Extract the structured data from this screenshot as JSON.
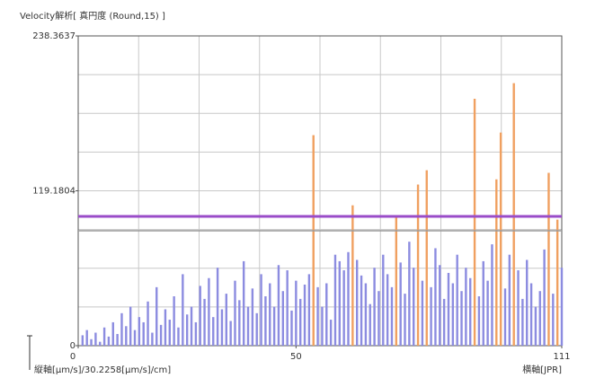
{
  "chart_data": {
    "type": "bar",
    "title": "Velocity解析[ 真円度 (Round,15) ]",
    "x_label": "縦軸[μm/s]/30.2258[μm/s]/cm]",
    "x_label_right": "横軸[JPR]",
    "x": [
      1,
      2,
      3,
      4,
      5,
      6,
      7,
      8,
      9,
      10,
      11,
      12,
      13,
      14,
      15,
      16,
      17,
      18,
      19,
      20,
      21,
      22,
      23,
      24,
      25,
      26,
      27,
      28,
      29,
      30,
      31,
      32,
      33,
      34,
      35,
      36,
      37,
      38,
      39,
      40,
      41,
      42,
      43,
      44,
      45,
      46,
      47,
      48,
      49,
      50,
      51,
      52,
      53,
      54,
      55,
      56,
      57,
      58,
      59,
      60,
      61,
      62,
      63,
      64,
      65,
      66,
      67,
      68,
      69,
      70,
      71,
      72,
      73,
      74,
      75,
      76,
      77,
      78,
      79,
      80,
      81,
      82,
      83,
      84,
      85,
      86,
      87,
      88,
      89,
      90,
      91,
      92,
      93,
      94,
      95,
      96,
      97,
      98,
      99,
      100,
      101,
      102,
      103,
      104,
      105,
      106,
      107,
      108,
      109,
      110,
      111
    ],
    "values": [
      8,
      12,
      5,
      10,
      3,
      14,
      7,
      18,
      9,
      25,
      15,
      30,
      12,
      22,
      18,
      34,
      10,
      45,
      16,
      28,
      20,
      38,
      14,
      55,
      24,
      30,
      18,
      46,
      36,
      52,
      22,
      60,
      28,
      40,
      19,
      50,
      35,
      65,
      30,
      44,
      25,
      55,
      38,
      48,
      30,
      62,
      42,
      58,
      27,
      50,
      36,
      47,
      55,
      162,
      45,
      30,
      48,
      20,
      70,
      65,
      58,
      72,
      108,
      66,
      54,
      48,
      32,
      60,
      42,
      70,
      55,
      45,
      100,
      64,
      40,
      80,
      60,
      124,
      50,
      135,
      45,
      75,
      62,
      36,
      56,
      48,
      70,
      42,
      60,
      52,
      190,
      38,
      65,
      50,
      78,
      128,
      164,
      44,
      70,
      202,
      58,
      36,
      66,
      48,
      30,
      42,
      74,
      133,
      40,
      97,
      60
    ],
    "color": "#8c8ce0",
    "highlight_color": "#f0a060",
    "highlighted_x": [
      54,
      63,
      73,
      78,
      80,
      91,
      96,
      97,
      100,
      108,
      110
    ],
    "reference_lines": [
      {
        "value": 99.5,
        "color": "#9a4cc8"
      },
      {
        "value": 88.4,
        "color": "#9a9a9a"
      }
    ],
    "xlim": [
      0,
      111
    ],
    "xticks": [
      0,
      50,
      111
    ],
    "ylim": [
      0,
      238.3637
    ],
    "yticks": [
      0,
      119.1804,
      238.3637
    ],
    "grid_divisions": {
      "x": 8,
      "y": 8
    }
  }
}
